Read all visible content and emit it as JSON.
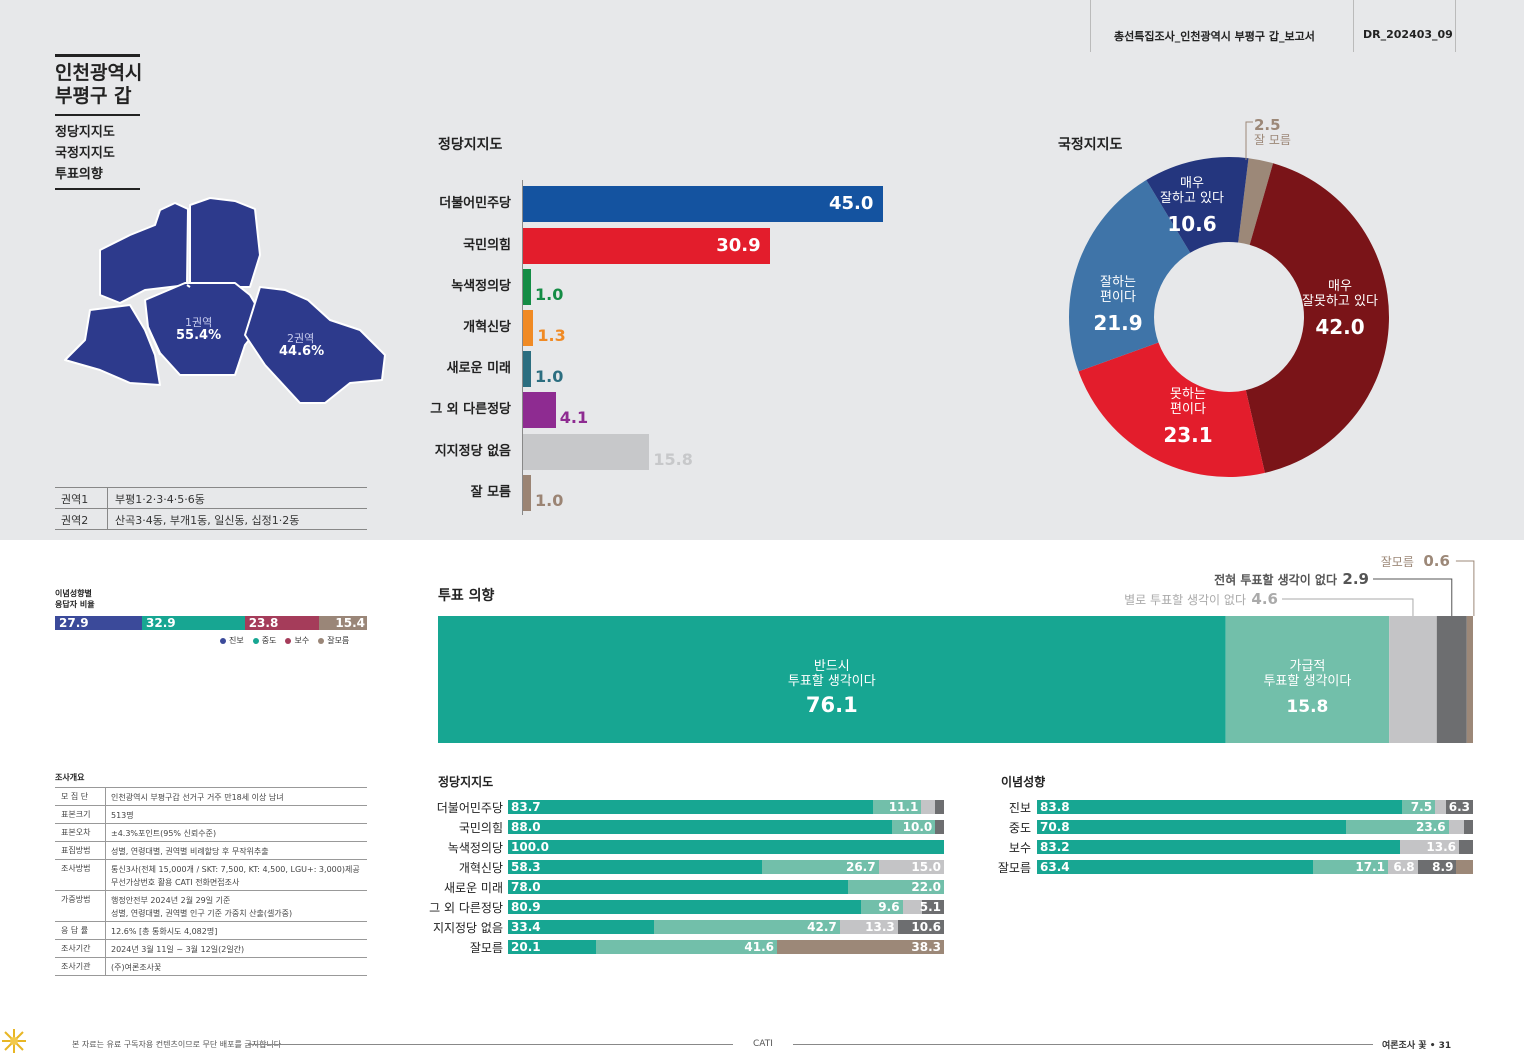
{
  "header": {
    "report_title": "총선특집조사_인천광역시 부평구 갑_보고서",
    "report_code": "DR_202403_09"
  },
  "side": {
    "district_line1": "인천광역시",
    "district_line2": "부평구 갑",
    "topics": [
      "정당지지도",
      "국정지지도",
      "투표의향"
    ]
  },
  "map": {
    "region1_name": "1권역",
    "region1_pct": "55.4%",
    "region2_name": "2권역",
    "region2_pct": "44.6%",
    "table": [
      {
        "region": "권역1",
        "dongs": "부평1·2·3·4·5·6동"
      },
      {
        "region": "권역2",
        "dongs": "산곡3·4동, 부개1동, 일신동, 십정1·2동"
      }
    ],
    "fill_color": "#2d3a8c"
  },
  "ideology": {
    "title_line1": "이념성향별",
    "title_line2": "응답자 비율",
    "segments": [
      {
        "name": "진보",
        "value": "27.9",
        "share": 27.9,
        "color": "#3b4a9a"
      },
      {
        "name": "중도",
        "value": "32.9",
        "share": 32.9,
        "color": "#17a692"
      },
      {
        "name": "보수",
        "value": "23.8",
        "share": 23.8,
        "color": "#a53c5a"
      },
      {
        "name": "잘모름",
        "value": "15.4",
        "share": 15.4,
        "color": "#9a8678"
      }
    ]
  },
  "survey": {
    "title": "조사개요",
    "rows": [
      {
        "k": "모 집 단",
        "v": [
          "인천광역시 부평구갑 선거구 거주 만18세 이상 남녀"
        ]
      },
      {
        "k": "표본크기",
        "v": [
          "513명"
        ]
      },
      {
        "k": "표본오차",
        "v": [
          "±4.3%포인트(95% 신뢰수준)"
        ]
      },
      {
        "k": "표집방법",
        "v": [
          "성별, 연령대별, 권역별 비례할당 후 무작위추출"
        ]
      },
      {
        "k": "조사방법",
        "v": [
          "통신3사(전체 15,000개 / SKT: 7,500, KT: 4,500, LGU+: 3,000)제공",
          "무선가상번호 활용 CATI 전화면접조사"
        ]
      },
      {
        "k": "가중방법",
        "v": [
          "행정안전부 2024년 2월 29일 기준",
          "성별, 연령대별, 권역별 인구 기준 가중치 산출(셀가중)"
        ]
      },
      {
        "k": "응 답 률",
        "v": [
          "12.6% [총 통화시도 4,082명]"
        ]
      },
      {
        "k": "조사기간",
        "v": [
          "2024년 3월 11일 ~ 3월 12일(2일간)"
        ]
      },
      {
        "k": "조사기관",
        "v": [
          "(주)여론조사꽃"
        ]
      }
    ]
  },
  "party_section_title": "정당지지도",
  "approval_section_title": "국정지지도",
  "vote_section_title": "투표 의향",
  "sub_party_title": "정당지지도",
  "sub_ideo_title": "이념성향",
  "footer": {
    "note": "본 자료는 유료 구독자용 컨텐츠이므로 무단 배포를 금지합니다",
    "method": "CATI",
    "brand": "여론조사 꽃",
    "sep": "•",
    "page": "31"
  },
  "chart_data": [
    {
      "type": "bar",
      "title": "정당지지도",
      "categories": [
        "더불어민주당",
        "국민의힘",
        "녹색정의당",
        "개혁신당",
        "새로운 미래",
        "그 외 다른정당",
        "지지정당 없음",
        "잘 모름"
      ],
      "values": [
        45.0,
        30.9,
        1.0,
        1.3,
        1.0,
        4.1,
        15.8,
        1.0
      ],
      "labels": [
        "45.0",
        "30.9",
        "1.0",
        "1.3",
        "1.0",
        "4.1",
        "15.8",
        "1.0"
      ],
      "colors": [
        "#1453a0",
        "#e31d2c",
        "#148c45",
        "#f08a24",
        "#2c6e80",
        "#8e2b91",
        "#c7c8ca",
        "#9b8474"
      ]
    },
    {
      "type": "pie",
      "title": "국정지지도",
      "slices": [
        {
          "label": "잘 모름",
          "lines": [
            "잘 모름"
          ],
          "value": 2.5,
          "display": "2.5",
          "color": "#9c8878"
        },
        {
          "label": "매우 잘못하고 있다",
          "lines": [
            "매우",
            "잘못하고 있다"
          ],
          "value": 42.0,
          "display": "42.0",
          "color": "#7a1418"
        },
        {
          "label": "못하는 편이다",
          "lines": [
            "못하는",
            "편이다"
          ],
          "value": 23.1,
          "display": "23.1",
          "color": "#e31d2c"
        },
        {
          "label": "잘하는 편이다",
          "lines": [
            "잘하는",
            "편이다"
          ],
          "value": 21.9,
          "display": "21.9",
          "color": "#3f74a8"
        },
        {
          "label": "매우 잘하고 있다",
          "lines": [
            "매우",
            "잘하고 있다"
          ],
          "value": 10.6,
          "display": "10.6",
          "color": "#24367e"
        }
      ]
    },
    {
      "type": "bar",
      "title": "투표 의향",
      "orientation": "stacked-horizontal",
      "segments": [
        {
          "label": "반드시 투표할 생각이다",
          "lines": [
            "반드시",
            "투표할 생각이다"
          ],
          "value": 76.1,
          "display": "76.1",
          "color": "#17a692"
        },
        {
          "label": "가급적 투표할 생각이다",
          "lines": [
            "가급적",
            "투표할 생각이다"
          ],
          "value": 15.8,
          "display": "15.8",
          "color": "#72bfaa"
        },
        {
          "label": "별로 투표할 생각이 없다",
          "value": 4.6,
          "display": "4.6",
          "color": "#c4c4c6"
        },
        {
          "label": "전혀 투표할 생각이 없다",
          "value": 2.9,
          "display": "2.9",
          "color": "#6d6e70"
        },
        {
          "label": "잘모름",
          "value": 0.6,
          "display": "0.6",
          "color": "#9c8878"
        }
      ]
    },
    {
      "type": "bar",
      "title": "정당지지도",
      "orientation": "stacked-horizontal",
      "colors": [
        "#17a692",
        "#72bfaa",
        "#c4c4c6",
        "#6d6e70",
        "#9c8878"
      ],
      "rows": [
        {
          "label": "더불어민주당",
          "values": [
            83.7,
            11.1,
            3.2,
            2.0,
            0
          ],
          "labels": [
            "83.7",
            "11.1",
            "",
            "",
            ""
          ]
        },
        {
          "label": "국민의힘",
          "values": [
            88.0,
            10.0,
            0,
            2.0,
            0
          ],
          "labels": [
            "88.0",
            "10.0",
            "",
            "",
            ""
          ]
        },
        {
          "label": "녹색정의당",
          "values": [
            100.0,
            0,
            0,
            0,
            0
          ],
          "labels": [
            "100.0",
            "",
            "",
            "",
            ""
          ]
        },
        {
          "label": "개혁신당",
          "values": [
            58.3,
            26.7,
            15.0,
            0,
            0
          ],
          "labels": [
            "58.3",
            "26.7",
            "15.0",
            "",
            ""
          ]
        },
        {
          "label": "새로운 미래",
          "values": [
            78.0,
            22.0,
            0,
            0,
            0
          ],
          "labels": [
            "78.0",
            "22.0",
            "",
            "",
            ""
          ]
        },
        {
          "label": "그 외 다른정당",
          "values": [
            80.9,
            9.6,
            4.4,
            5.1,
            0
          ],
          "labels": [
            "80.9",
            "9.6",
            "",
            "5.1",
            ""
          ]
        },
        {
          "label": "지지정당 없음",
          "values": [
            33.4,
            42.7,
            13.3,
            10.6,
            0
          ],
          "labels": [
            "33.4",
            "42.7",
            "13.3",
            "10.6",
            ""
          ]
        },
        {
          "label": "잘모름",
          "values": [
            20.1,
            41.6,
            0,
            0,
            38.3
          ],
          "labels": [
            "20.1",
            "41.6",
            "",
            "",
            "38.3"
          ]
        }
      ]
    },
    {
      "type": "bar",
      "title": "이념성향",
      "orientation": "stacked-horizontal",
      "colors": [
        "#17a692",
        "#72bfaa",
        "#c4c4c6",
        "#6d6e70",
        "#9c8878"
      ],
      "rows": [
        {
          "label": "진보",
          "values": [
            83.8,
            7.5,
            2.4,
            6.3,
            0
          ],
          "labels": [
            "83.8",
            "7.5",
            "",
            "6.3",
            ""
          ]
        },
        {
          "label": "중도",
          "values": [
            70.8,
            23.6,
            3.6,
            2.0,
            0
          ],
          "labels": [
            "70.8",
            "23.6",
            "",
            "",
            ""
          ]
        },
        {
          "label": "보수",
          "values": [
            83.2,
            0,
            13.6,
            3.2,
            0
          ],
          "labels": [
            "83.2",
            "",
            "13.6",
            "",
            ""
          ]
        },
        {
          "label": "잘모름",
          "values": [
            63.4,
            17.1,
            6.8,
            8.9,
            3.8
          ],
          "labels": [
            "63.4",
            "17.1",
            "6.8",
            "8.9",
            ""
          ]
        }
      ]
    }
  ]
}
